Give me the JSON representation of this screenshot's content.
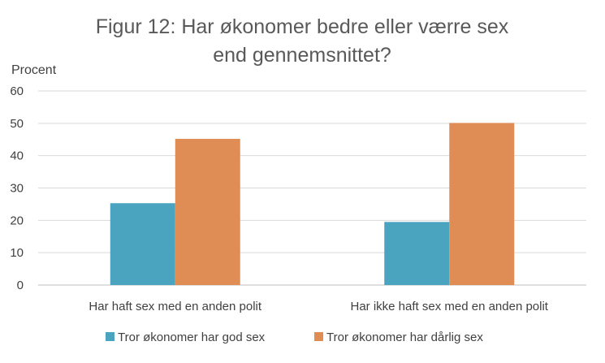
{
  "chart_data": {
    "type": "bar",
    "title_lines": [
      "Figur 12: Har økonomer bedre eller værre sex",
      "end gennemsnittet?"
    ],
    "ylabel": "Procent",
    "xlabel": "",
    "categories": [
      "Har haft sex med en anden polit",
      "Har ikke haft sex med en anden polit"
    ],
    "series": [
      {
        "name": "Tror økonomer har god sex",
        "values": [
          25.3,
          19.5
        ],
        "color": "#4aa3bf"
      },
      {
        "name": "Tror økonomer har dårlig sex",
        "values": [
          45.2,
          50.1
        ],
        "color": "#e08d55"
      }
    ],
    "ylim": [
      0,
      60
    ],
    "yticks": [
      0,
      10,
      20,
      30,
      40,
      50,
      60
    ],
    "grid": true,
    "legend_position": "bottom"
  }
}
